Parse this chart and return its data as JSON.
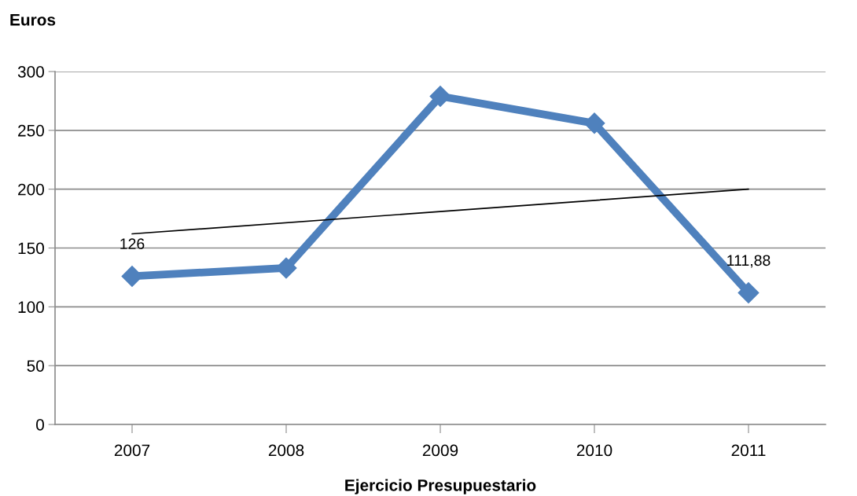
{
  "chart_data": {
    "type": "line",
    "ylabel": "Euros",
    "xlabel": "Ejercicio Presupuestario",
    "categories": [
      "2007",
      "2008",
      "2009",
      "2010",
      "2011"
    ],
    "series": [
      {
        "color": "#4f81bd",
        "values": [
          126,
          133,
          279,
          256,
          111.88
        ],
        "marker": "diamond",
        "value_labels": [
          "126",
          null,
          null,
          null,
          "111,88"
        ]
      },
      {
        "color": "#000000",
        "values": [
          162,
          null,
          null,
          null,
          200
        ],
        "marker": "none"
      }
    ],
    "ylim": [
      0,
      300
    ],
    "yticks": [
      0,
      50,
      100,
      150,
      200,
      250,
      300
    ],
    "grid": "y",
    "legend": false
  }
}
